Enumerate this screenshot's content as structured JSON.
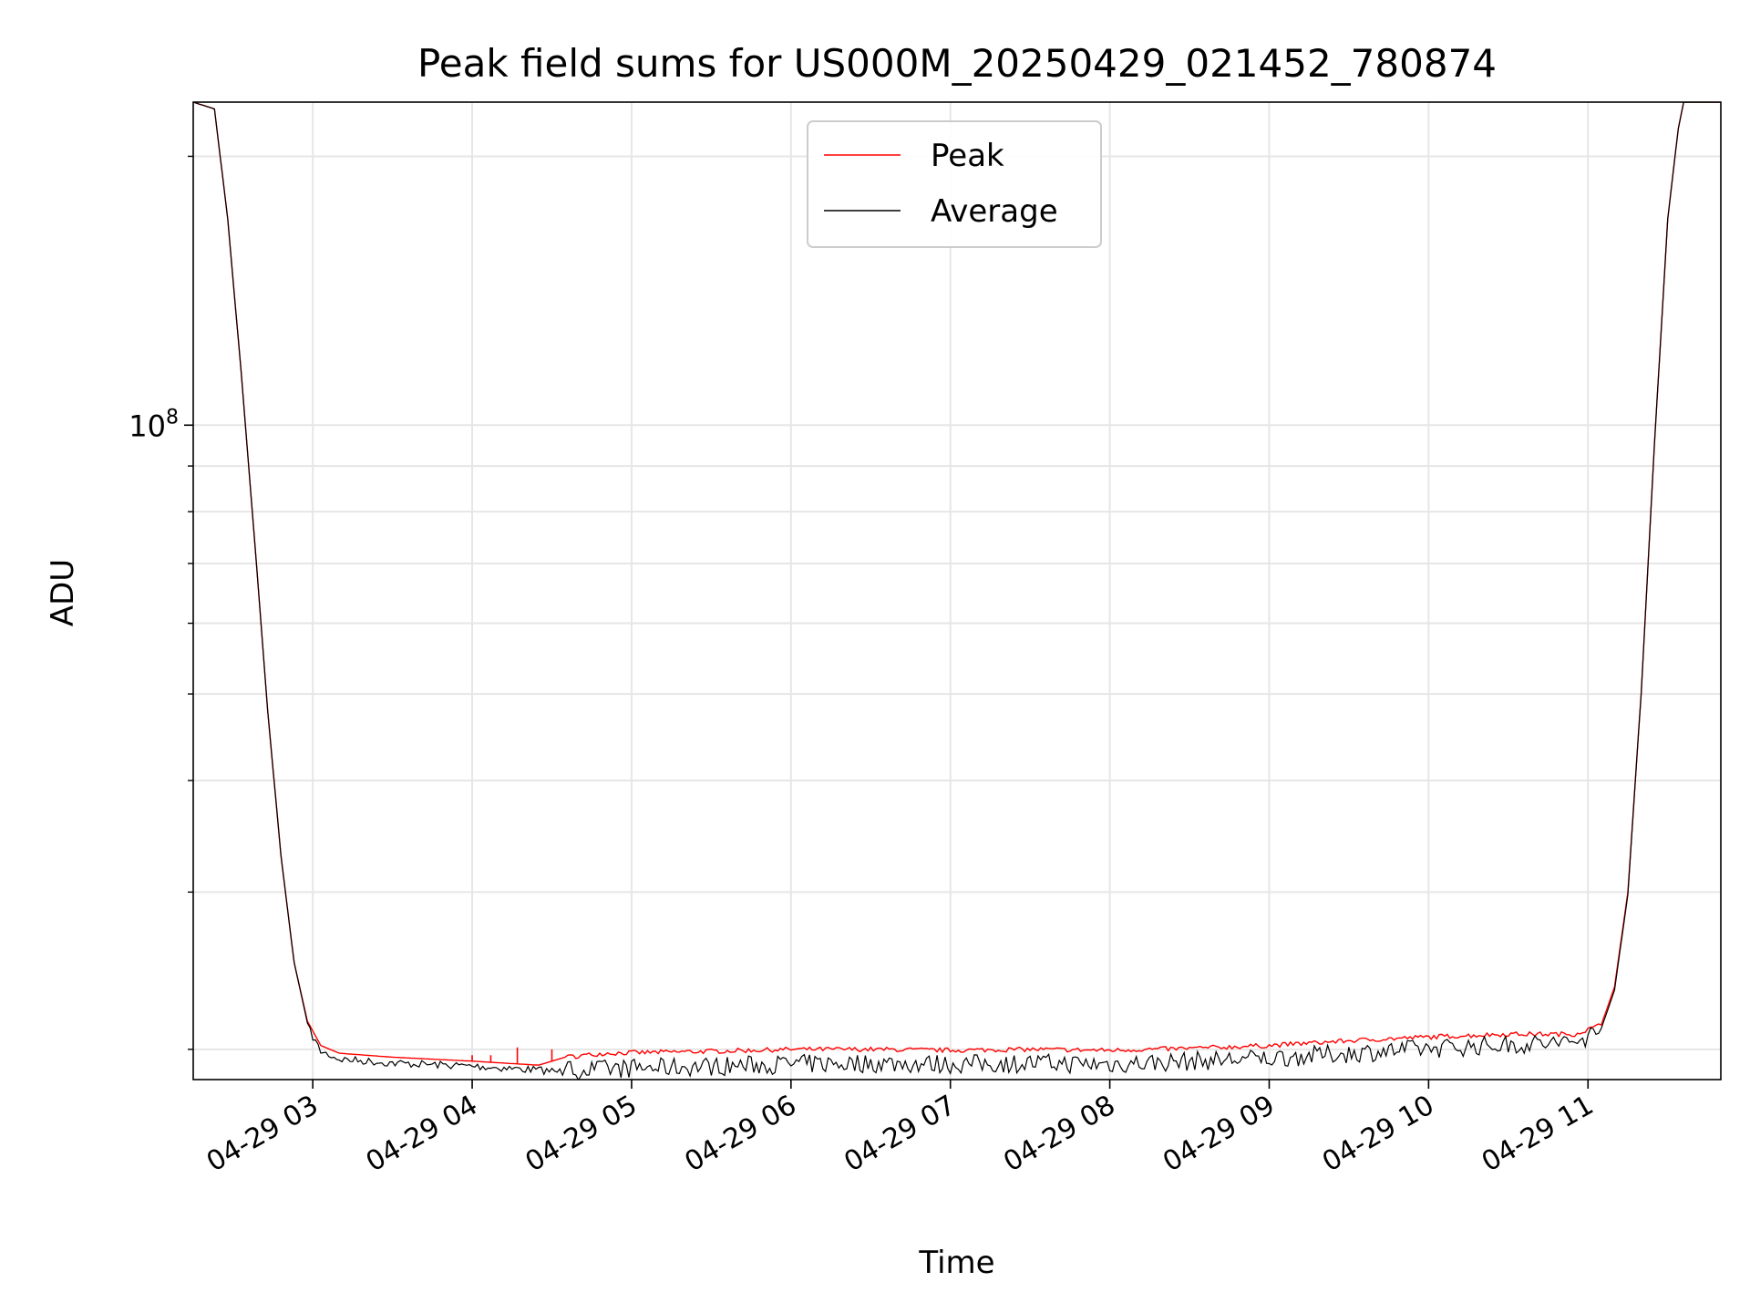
{
  "chart_data": {
    "type": "line",
    "title": "Peak field sums for US000M_20250429_021452_780874",
    "xlabel": "Time",
    "ylabel": "ADU",
    "yscale": "log",
    "grid": true,
    "legend_position": "top-center",
    "colors": {
      "Peak": "#ff0000",
      "Average": "#000000",
      "grid": "#e6e6e6"
    },
    "x_tick_labels": [
      "04-29 03",
      "04-29 04",
      "04-29 05",
      "04-29 06",
      "04-29 07",
      "04-29 08",
      "04-29 09",
      "04-29 10",
      "04-29 11"
    ],
    "x_tick_values": [
      "2025-04-29T03:00",
      "2025-04-29T04:00",
      "2025-04-29T05:00",
      "2025-04-29T06:00",
      "2025-04-29T07:00",
      "2025-04-29T08:00",
      "2025-04-29T09:00",
      "2025-04-29T10:00",
      "2025-04-29T11:00"
    ],
    "xlim": [
      "2025-04-29T02:15",
      "2025-04-29T11:50"
    ],
    "y_tick_labels": [
      {
        "base": "10",
        "exp": "8"
      }
    ],
    "y_major_ticks": [
      100000000
    ],
    "y_minor_ticks": [
      20000000,
      30000000,
      40000000,
      50000000,
      60000000,
      70000000,
      80000000,
      90000000,
      200000000
    ],
    "ylim": [
      18500000,
      230000000
    ],
    "series": [
      {
        "name": "Peak",
        "color": "#ff0000",
        "points": [
          [
            "2025-04-29T02:15",
            230000000
          ],
          [
            "2025-04-29T02:23",
            226000000
          ],
          [
            "2025-04-29T02:28",
            170000000
          ],
          [
            "2025-04-29T02:33",
            115000000
          ],
          [
            "2025-04-29T02:38",
            75000000
          ],
          [
            "2025-04-29T02:43",
            48000000
          ],
          [
            "2025-04-29T02:48",
            33000000
          ],
          [
            "2025-04-29T02:53",
            25000000
          ],
          [
            "2025-04-29T02:58",
            21500000
          ],
          [
            "2025-04-29T03:03",
            20200000
          ],
          [
            "2025-04-29T03:10",
            19800000
          ],
          [
            "2025-04-29T03:30",
            19600000
          ],
          [
            "2025-04-29T04:00",
            19400000
          ],
          [
            "2025-04-29T04:25",
            19200000
          ],
          [
            "2025-04-29T04:35",
            19600000
          ],
          [
            "2025-04-29T04:50",
            19800000
          ],
          [
            "2025-04-29T05:30",
            19900000
          ],
          [
            "2025-04-29T06:00",
            20000000
          ],
          [
            "2025-04-29T06:30",
            20000000
          ],
          [
            "2025-04-29T07:00",
            19950000
          ],
          [
            "2025-04-29T07:30",
            20000000
          ],
          [
            "2025-04-29T08:00",
            19950000
          ],
          [
            "2025-04-29T08:30",
            20050000
          ],
          [
            "2025-04-29T09:00",
            20200000
          ],
          [
            "2025-04-29T09:30",
            20450000
          ],
          [
            "2025-04-29T10:00",
            20650000
          ],
          [
            "2025-04-29T10:30",
            20800000
          ],
          [
            "2025-04-29T10:55",
            20800000
          ],
          [
            "2025-04-29T11:05",
            21300000
          ],
          [
            "2025-04-29T11:10",
            23500000
          ],
          [
            "2025-04-29T11:15",
            30000000
          ],
          [
            "2025-04-29T11:20",
            50000000
          ],
          [
            "2025-04-29T11:25",
            95000000
          ],
          [
            "2025-04-29T11:30",
            170000000
          ],
          [
            "2025-04-29T11:34",
            215000000
          ],
          [
            "2025-04-29T11:36",
            230000000
          ],
          [
            "2025-04-29T11:50",
            230000000
          ]
        ],
        "spikes": [
          [
            "2025-04-29T03:00",
            21000000
          ],
          [
            "2025-04-29T04:00",
            19700000
          ],
          [
            "2025-04-29T04:07",
            19700000
          ],
          [
            "2025-04-29T04:17",
            20100000
          ],
          [
            "2025-04-29T04:30",
            20000000
          ]
        ]
      },
      {
        "name": "Average",
        "color": "#000000",
        "points": [
          [
            "2025-04-29T02:15",
            230000000
          ],
          [
            "2025-04-29T02:23",
            226000000
          ],
          [
            "2025-04-29T02:28",
            170000000
          ],
          [
            "2025-04-29T02:33",
            115000000
          ],
          [
            "2025-04-29T02:38",
            75000000
          ],
          [
            "2025-04-29T02:43",
            48000000
          ],
          [
            "2025-04-29T02:48",
            33000000
          ],
          [
            "2025-04-29T02:53",
            25000000
          ],
          [
            "2025-04-29T02:58",
            21400000
          ],
          [
            "2025-04-29T03:03",
            20100000
          ],
          [
            "2025-04-29T03:10",
            19700000
          ],
          [
            "2025-04-29T03:30",
            19500000
          ],
          [
            "2025-04-29T04:00",
            19350000
          ],
          [
            "2025-04-29T04:25",
            19150000
          ],
          [
            "2025-04-29T04:40",
            19000000
          ],
          [
            "2025-04-29T05:00",
            19100000
          ],
          [
            "2025-04-29T05:30",
            19200000
          ],
          [
            "2025-04-29T06:00",
            19300000
          ],
          [
            "2025-04-29T06:30",
            19350000
          ],
          [
            "2025-04-29T07:00",
            19300000
          ],
          [
            "2025-04-29T07:30",
            19350000
          ],
          [
            "2025-04-29T08:00",
            19300000
          ],
          [
            "2025-04-29T08:30",
            19450000
          ],
          [
            "2025-04-29T09:00",
            19600000
          ],
          [
            "2025-04-29T09:30",
            19850000
          ],
          [
            "2025-04-29T10:00",
            20100000
          ],
          [
            "2025-04-29T10:30",
            20300000
          ],
          [
            "2025-04-29T10:55",
            20400000
          ],
          [
            "2025-04-29T11:05",
            21100000
          ],
          [
            "2025-04-29T11:10",
            23300000
          ],
          [
            "2025-04-29T11:15",
            29800000
          ],
          [
            "2025-04-29T11:20",
            50000000
          ],
          [
            "2025-04-29T11:25",
            95000000
          ],
          [
            "2025-04-29T11:30",
            170000000
          ],
          [
            "2025-04-29T11:34",
            215000000
          ],
          [
            "2025-04-29T11:36",
            230000000
          ],
          [
            "2025-04-29T11:50",
            230000000
          ]
        ]
      }
    ]
  }
}
